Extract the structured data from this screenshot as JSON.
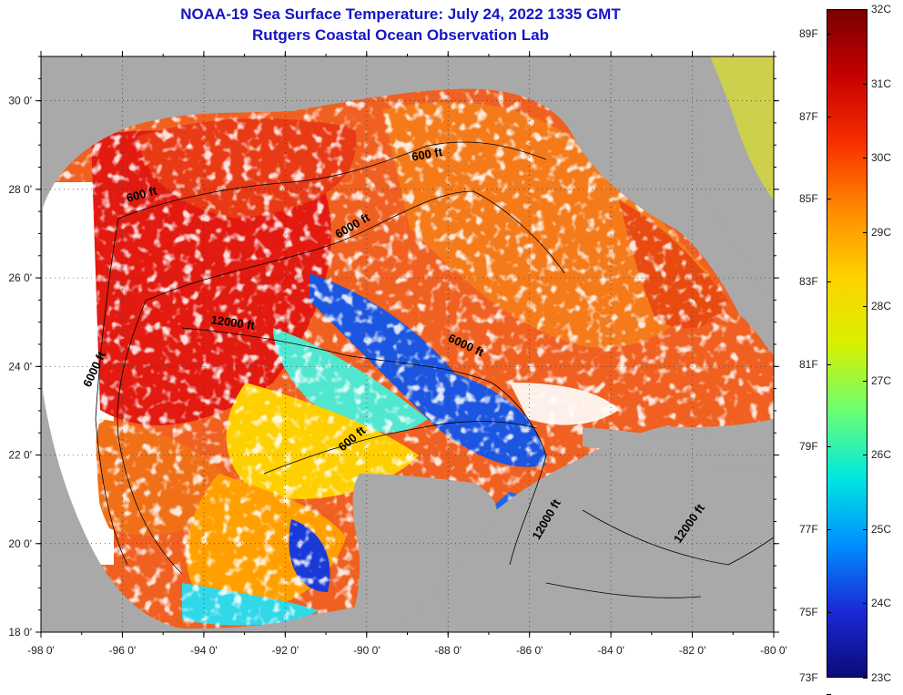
{
  "title": {
    "line1": "NOAA-19 Sea Surface Temperature:  July 24, 2022 1335 GMT",
    "line2": "Rutgers Coastal Ocean Observation Lab"
  },
  "colors": {
    "land": "#a9a9a9",
    "cloud": "#ffffff",
    "title": "#1515c8"
  },
  "axes": {
    "x_labels": [
      "-98 0'",
      "-96 0'",
      "-94 0'",
      "-92 0'",
      "-90 0'",
      "-88 0'",
      "-86 0'",
      "-84 0'",
      "-82 0'",
      "-80 0'"
    ],
    "y_labels": [
      "30 0'",
      "28 0'",
      "26 0'",
      "24 0'",
      "22 0'",
      "20 0'",
      "18 0'"
    ],
    "lon_range": [
      -98,
      -80
    ],
    "lat_range": [
      18,
      31
    ]
  },
  "contour_labels": [
    {
      "text": "600 ft",
      "lon": -88.5,
      "lat": 28.7
    },
    {
      "text": "600 ft",
      "lon": -95.5,
      "lat": 27.8
    },
    {
      "text": "6000 ft",
      "lon": -90.3,
      "lat": 27.1
    },
    {
      "text": "12000 ft",
      "lon": -93.3,
      "lat": 24.9
    },
    {
      "text": "6000 ft",
      "lon": -87.6,
      "lat": 24.4
    },
    {
      "text": "6000 ft",
      "lon": -96.6,
      "lat": 23.9
    },
    {
      "text": "600 ft",
      "lon": -90.3,
      "lat": 22.3
    },
    {
      "text": "12000 ft",
      "lon": -85.5,
      "lat": 20.5
    },
    {
      "text": "12000 ft",
      "lon": -82.0,
      "lat": 20.4
    }
  ],
  "colorbar": {
    "celsius_labels": [
      "32C",
      "31C",
      "30C",
      "29C",
      "28C",
      "27C",
      "26C",
      "25C",
      "24C",
      "23C"
    ],
    "fahrenheit_labels": [
      "89F",
      "87F",
      "85F",
      "83F",
      "81F",
      "79F",
      "77F",
      "75F",
      "73F"
    ],
    "c_range": [
      23,
      32
    ],
    "f_values": [
      89,
      87,
      85,
      83,
      81,
      79,
      77,
      75,
      73
    ],
    "stops": [
      "#7a0000",
      "#c80000",
      "#f83000",
      "#ff8a00",
      "#ffd200",
      "#d8f000",
      "#6cff70",
      "#00e8e0",
      "#0090ff",
      "#1a2ad8",
      "#0a0a78"
    ]
  }
}
